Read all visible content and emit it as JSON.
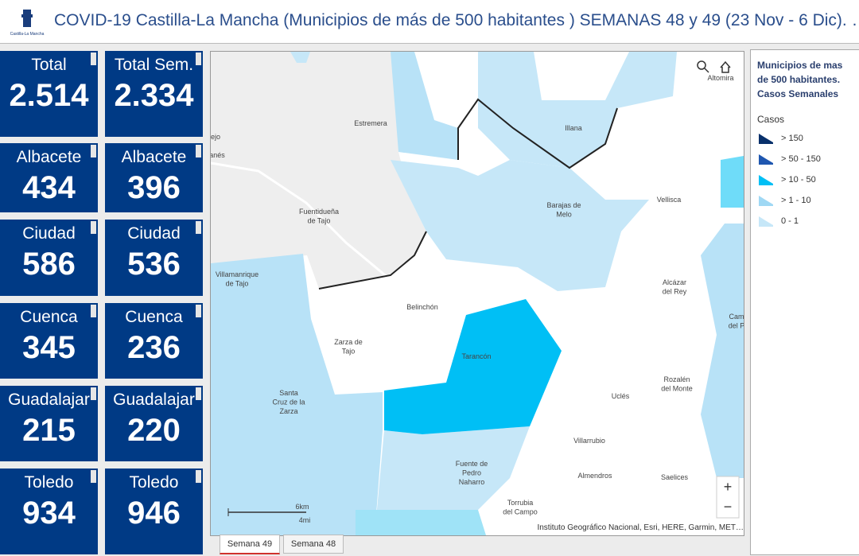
{
  "header": {
    "logo_text": "Castilla-La Mancha",
    "title": "COVID-19 Castilla-La Mancha (Municipios de más de 500 habitantes ) SEMANAS 48 y 49 (23 Nov - 6 Dic). …"
  },
  "cards": [
    [
      {
        "label": "Total",
        "value": "2.514"
      },
      {
        "label": "Total Sem.",
        "value": "2.334"
      }
    ],
    [
      {
        "label": "Albacete",
        "value": "434"
      },
      {
        "label": "Albacete",
        "value": "396"
      }
    ],
    [
      {
        "label": "Ciudad",
        "value": "586"
      },
      {
        "label": "Ciudad",
        "value": "536"
      }
    ],
    [
      {
        "label": "Cuenca",
        "value": "345"
      },
      {
        "label": "Cuenca",
        "value": "236"
      }
    ],
    [
      {
        "label": "Guadalajar",
        "value": "215"
      },
      {
        "label": "Guadalajar",
        "value": "220"
      }
    ],
    [
      {
        "label": "Toledo",
        "value": "934"
      },
      {
        "label": "Toledo",
        "value": "946"
      }
    ]
  ],
  "map": {
    "labels": [
      {
        "lines": [
          "Estremera"
        ]
      },
      {
        "lines": [
          "Illana"
        ]
      },
      {
        "lines": [
          "Altomira"
        ]
      },
      {
        "lines": [
          "Barajas de",
          "Melo"
        ]
      },
      {
        "lines": [
          "Vellisca"
        ]
      },
      {
        "lines": [
          "Fuentidueña",
          "de Tajo"
        ]
      },
      {
        "lines": [
          "Villamanrique",
          "de Tajo"
        ]
      },
      {
        "lines": [
          "Alcázar",
          "del Rey"
        ]
      },
      {
        "lines": [
          "Belinchón"
        ]
      },
      {
        "lines": [
          "Zarza de",
          "Tajo"
        ]
      },
      {
        "lines": [
          "Tarancón"
        ]
      },
      {
        "lines": [
          "Cam",
          "del P"
        ]
      },
      {
        "lines": [
          "Rozalén",
          "del Monte"
        ]
      },
      {
        "lines": [
          "Uclés"
        ]
      },
      {
        "lines": [
          "Santa",
          "Cruz de la",
          "Zarza"
        ]
      },
      {
        "lines": [
          "Villarrubio"
        ]
      },
      {
        "lines": [
          "Fuente de",
          "Pedro",
          "Naharro"
        ]
      },
      {
        "lines": [
          "Almendros"
        ]
      },
      {
        "lines": [
          "Saelices"
        ]
      },
      {
        "lines": [
          "Torrubia",
          "del Campo"
        ]
      },
      {
        "lines": [
          "ejo"
        ]
      },
      {
        "lines": [
          "anés"
        ]
      }
    ],
    "scale": {
      "km": "6km",
      "mi": "4mi"
    },
    "zoom_in": "+",
    "zoom_out": "−",
    "attribution": "Instituto Geográfico Nacional, Esri, HERE, Garmin, MET…"
  },
  "tabs": [
    "Semana 49",
    "Semana 48"
  ],
  "legend": {
    "title": "Municipios de mas de 500 habitantes. Casos Semanales",
    "subtitle": "Casos",
    "items": [
      {
        "label": "> 150",
        "color": "#08306b"
      },
      {
        "label": "> 50 - 150",
        "color": "#1f57b0"
      },
      {
        "label": "> 10 - 50",
        "color": "#00bff5"
      },
      {
        "label": "> 1 - 10",
        "color": "#9fd8f4"
      },
      {
        "label": "0 - 1",
        "color": "#c6e7f8"
      }
    ]
  }
}
